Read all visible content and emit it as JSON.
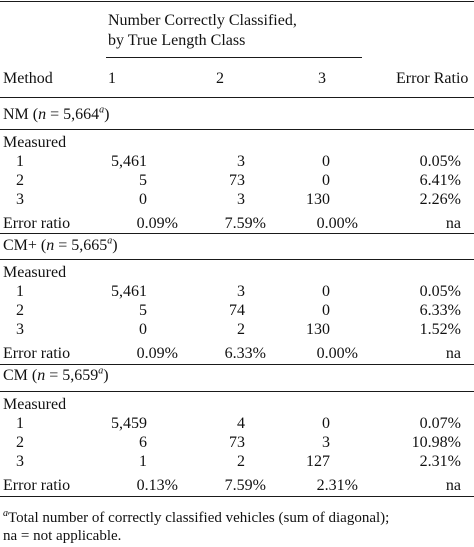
{
  "header": {
    "group_line1": "Number Correctly Classified,",
    "group_line2": "by True Length Class",
    "method": "Method",
    "c1": "1",
    "c2": "2",
    "c3": "3",
    "error": "Error Ratio"
  },
  "sections": [
    {
      "name": "NM",
      "n_prefix": "n",
      "n_eq": " = 5,664",
      "sup": "a",
      "measured": "Measured",
      "rows": [
        {
          "label": "1",
          "v1": "5,461",
          "v2": "3",
          "v3": "0",
          "err": "0.05%"
        },
        {
          "label": "2",
          "v1": "5",
          "v2": "73",
          "v3": "0",
          "err": "6.41%"
        },
        {
          "label": "3",
          "v1": "0",
          "v2": "3",
          "v3": "130",
          "err": "2.26%"
        }
      ],
      "error_row": {
        "label": "Error ratio",
        "v1": "0.09%",
        "v2": "7.59%",
        "v3": "0.00%",
        "err": "na"
      }
    },
    {
      "name": "CM+",
      "n_prefix": "n",
      "n_eq": " = 5,665",
      "sup": "a",
      "measured": "Measured",
      "rows": [
        {
          "label": "1",
          "v1": "5,461",
          "v2": "3",
          "v3": "0",
          "err": "0.05%"
        },
        {
          "label": "2",
          "v1": "5",
          "v2": "74",
          "v3": "0",
          "err": "6.33%"
        },
        {
          "label": "3",
          "v1": "0",
          "v2": "2",
          "v3": "130",
          "err": "1.52%"
        }
      ],
      "error_row": {
        "label": "Error ratio",
        "v1": "0.09%",
        "v2": "6.33%",
        "v3": "0.00%",
        "err": "na"
      }
    },
    {
      "name": "CM",
      "n_prefix": "n",
      "n_eq": " = 5,659",
      "sup": "a",
      "measured": "Measured",
      "rows": [
        {
          "label": "1",
          "v1": "5,459",
          "v2": "4",
          "v3": "0",
          "err": "0.07%"
        },
        {
          "label": "2",
          "v1": "6",
          "v2": "73",
          "v3": "3",
          "err": "10.98%"
        },
        {
          "label": "3",
          "v1": "1",
          "v2": "2",
          "v3": "127",
          "err": "2.31%"
        }
      ],
      "error_row": {
        "label": "Error ratio",
        "v1": "0.13%",
        "v2": "7.59%",
        "v3": "2.31%",
        "err": "na"
      }
    }
  ],
  "footnote": {
    "sup": "a",
    "line1": "Total number of correctly classified vehicles (sum of diagonal);",
    "line2": "na = not applicable."
  }
}
